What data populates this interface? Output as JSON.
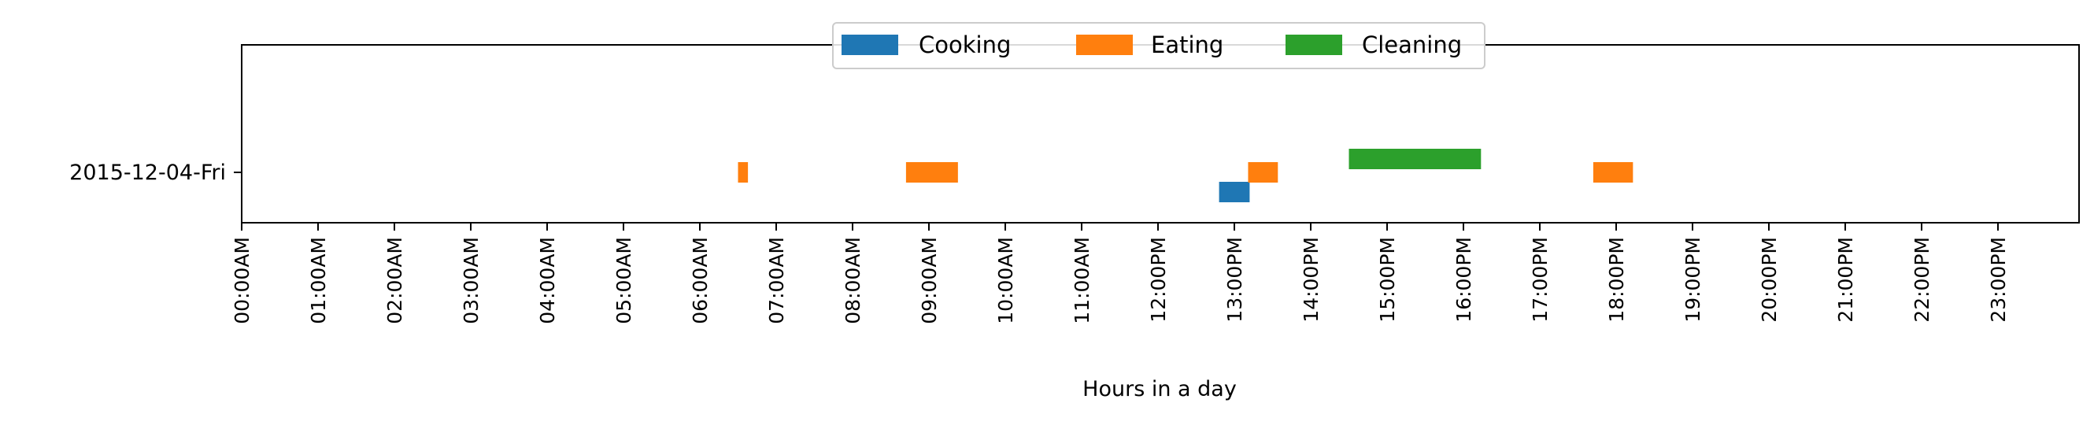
{
  "chart_data": {
    "type": "timeline",
    "title": "",
    "xlabel": "Hours in a day",
    "ylabel": "",
    "xlim": [
      0,
      24
    ],
    "x_ticks": [
      "00:00AM",
      "01:00AM",
      "02:00AM",
      "03:00AM",
      "04:00AM",
      "05:00AM",
      "06:00AM",
      "07:00AM",
      "08:00AM",
      "09:00AM",
      "10:00AM",
      "11:00AM",
      "12:00PM",
      "13:00PM",
      "14:00PM",
      "15:00PM",
      "16:00PM",
      "17:00PM",
      "18:00PM",
      "19:00PM",
      "20:00PM",
      "21:00PM",
      "22:00PM",
      "23:00PM"
    ],
    "y_categories": [
      "2015-12-04-Fri"
    ],
    "grid": false,
    "legend_position": "top-center",
    "series": [
      {
        "name": "Cooking",
        "color": "#1f77b4",
        "intervals": [
          {
            "day": "2015-12-04-Fri",
            "start": 12.8,
            "end": 13.2
          }
        ]
      },
      {
        "name": "Eating",
        "color": "#ff7f0e",
        "intervals": [
          {
            "day": "2015-12-04-Fri",
            "start": 6.5,
            "end": 6.63
          },
          {
            "day": "2015-12-04-Fri",
            "start": 8.7,
            "end": 9.38
          },
          {
            "day": "2015-12-04-Fri",
            "start": 13.18,
            "end": 13.57
          },
          {
            "day": "2015-12-04-Fri",
            "start": 17.7,
            "end": 18.22
          }
        ]
      },
      {
        "name": "Cleaning",
        "color": "#2ca02c",
        "intervals": [
          {
            "day": "2015-12-04-Fri",
            "start": 14.5,
            "end": 16.23
          }
        ]
      }
    ]
  }
}
